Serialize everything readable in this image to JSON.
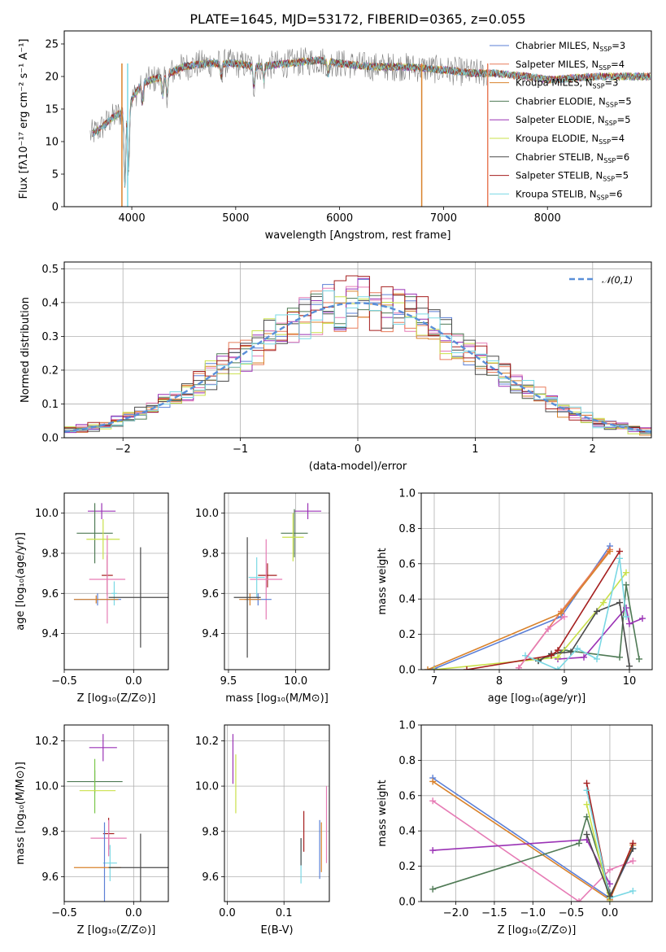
{
  "figure_title": "PLATE=1645, MJD=53172, FIBERID=0365, z=0.055",
  "colors": {
    "Chabrier MILES": "#5b7fd6",
    "Salpeter MILES": "#e87c5a",
    "Kroupa MILES": "#d9822b",
    "Chabrier ELODIE": "#4f7a55",
    "Salpeter ELODIE": "#9a32b5",
    "Kroupa ELODIE": "#c9e04a",
    "Chabrier STELIB": "#4a4a4a",
    "Salpeter STELIB": "#a51f1f",
    "Kroupa STELIB": "#7ad8e4",
    "data": "#808080",
    "normal": "#5a8fd8",
    "pink": "#e67bb5",
    "green2": "#7ac74a"
  },
  "chart_data": [
    {
      "id": "spectrum",
      "type": "line",
      "xlabel": "wavelength [Angstrom, rest frame]",
      "ylabel": "Flux [fλ10⁻¹⁷ erg cm⁻² s⁻¹ A⁻¹]",
      "xlim": [
        3350,
        9000
      ],
      "ylim": [
        0,
        27
      ],
      "xticks": [
        4000,
        5000,
        6000,
        7000,
        8000
      ],
      "yticks": [
        0,
        5,
        10,
        15,
        20,
        25
      ],
      "legend_position": "top-right",
      "legend": [
        {
          "name": "Chabrier MILES, N",
          "sub": "SSP",
          "n": "=3",
          "color": "#5b7fd6"
        },
        {
          "name": "Salpeter MILES, N",
          "sub": "SSP",
          "n": "=4",
          "color": "#e87c5a"
        },
        {
          "name": "Kroupa MILES, N",
          "sub": "SSP",
          "n": "=3",
          "color": "#d9822b"
        },
        {
          "name": "Chabrier ELODIE, N",
          "sub": "SSP",
          "n": "=5",
          "color": "#4f7a55"
        },
        {
          "name": "Salpeter ELODIE, N",
          "sub": "SSP",
          "n": "=5",
          "color": "#9a32b5"
        },
        {
          "name": "Kroupa ELODIE, N",
          "sub": "SSP",
          "n": "=4",
          "color": "#c9e04a"
        },
        {
          "name": "Chabrier STELIB, N",
          "sub": "SSP",
          "n": "=6",
          "color": "#4a4a4a"
        },
        {
          "name": "Salpeter STELIB, N",
          "sub": "SSP",
          "n": "=5",
          "color": "#a51f1f"
        },
        {
          "name": "Kroupa STELIB, N",
          "sub": "SSP",
          "n": "=6",
          "color": "#7ad8e4"
        }
      ],
      "continuum": [
        [
          3600,
          11
        ],
        [
          3700,
          12
        ],
        [
          3800,
          13.5
        ],
        [
          3900,
          14.5
        ],
        [
          4000,
          16.5
        ],
        [
          4100,
          19
        ],
        [
          4200,
          19.5
        ],
        [
          4300,
          20
        ],
        [
          4500,
          21.5
        ],
        [
          4700,
          22
        ],
        [
          5000,
          22
        ],
        [
          5200,
          21.5
        ],
        [
          5500,
          22
        ],
        [
          5800,
          22.5
        ],
        [
          6000,
          22
        ],
        [
          6300,
          21.5
        ],
        [
          6600,
          21.5
        ],
        [
          7000,
          21
        ],
        [
          7300,
          20.5
        ],
        [
          7500,
          20.5
        ],
        [
          7800,
          20
        ],
        [
          8000,
          19.5
        ],
        [
          8500,
          20
        ],
        [
          8900,
          20
        ]
      ]
    },
    {
      "id": "residuals",
      "type": "bar",
      "xlabel": "(data-model)/error",
      "ylabel": "Normed distribution",
      "xlim": [
        -2.5,
        2.5
      ],
      "ylim": [
        0,
        0.52
      ],
      "xticks": [
        -2,
        -1,
        0,
        1,
        2
      ],
      "yticks": [
        0.0,
        0.1,
        0.2,
        0.3,
        0.4,
        0.5
      ],
      "legend_position": "top-right",
      "legend_label": "𝒩(0,1)",
      "bin_width": 0.1,
      "series_centers": [
        -2.45,
        -2.35,
        -2.25,
        -2.15,
        -2.05,
        -1.95,
        -1.85,
        -1.75,
        -1.65,
        -1.55,
        -1.45,
        -1.35,
        -1.25,
        -1.15,
        -1.05,
        -0.95,
        -0.85,
        -0.75,
        -0.65,
        -0.55,
        -0.45,
        -0.35,
        -0.25,
        -0.15,
        -0.05,
        0.05,
        0.15,
        0.25,
        0.35,
        0.45,
        0.55,
        0.65,
        0.75,
        0.85,
        0.95,
        1.05,
        1.15,
        1.25,
        1.35,
        1.45,
        1.55,
        1.65,
        1.75,
        1.85,
        1.95,
        2.05,
        2.15,
        2.25,
        2.35,
        2.45
      ]
    },
    {
      "id": "z-vs-age",
      "type": "scatter",
      "xlabel": "Z [log₁₀(Z/Z⊙)]",
      "ylabel": "age  [log₁₀(age/yr)]",
      "xlim": [
        -0.5,
        0.25
      ],
      "ylim": [
        9.22,
        10.1
      ],
      "xticks": [
        -0.5,
        0.0
      ],
      "yticks": [
        9.4,
        9.6,
        9.8,
        10.0
      ],
      "points": [
        {
          "x": -0.23,
          "y": 10.01,
          "xerr": 0.1,
          "yerr": 0.04,
          "color": "#9a32b5"
        },
        {
          "x": -0.28,
          "y": 9.9,
          "xerr": 0.13,
          "yerr": 0.15,
          "color": "#4f7a55"
        },
        {
          "x": -0.22,
          "y": 9.87,
          "xerr": 0.12,
          "yerr": 0.1,
          "color": "#c9e04a"
        },
        {
          "x": -0.19,
          "y": 9.69,
          "xerr": 0.04,
          "yerr": 0.1,
          "color": "#a51f1f"
        },
        {
          "x": -0.19,
          "y": 9.67,
          "xerr": 0.13,
          "yerr": 0.22,
          "color": "#e67bb5"
        },
        {
          "x": -0.14,
          "y": 9.6,
          "xerr": 0.02,
          "yerr": 0.06,
          "color": "#7ad8e4"
        },
        {
          "x": -0.26,
          "y": 9.57,
          "xerr": 0.17,
          "yerr": 0.03,
          "color": "#5b7fd6"
        },
        {
          "x": -0.27,
          "y": 9.57,
          "xerr": 0.16,
          "yerr": 0.02,
          "color": "#d9822b"
        },
        {
          "x": 0.05,
          "y": 9.58,
          "xerr": 0.23,
          "yerr": 0.25,
          "color": "#4a4a4a"
        }
      ]
    },
    {
      "id": "mass-vs-age",
      "type": "scatter",
      "xlabel": "mass [log₁₀(M/M⊙)]",
      "ylabel": "",
      "xlim": [
        9.47,
        10.25
      ],
      "ylim": [
        9.22,
        10.1
      ],
      "xticks": [
        9.5,
        10.0
      ],
      "yticks": [
        9.4,
        9.6,
        9.8,
        10.0
      ],
      "points": [
        {
          "x": 10.09,
          "y": 10.01,
          "xerr": 0.1,
          "yerr": 0.04,
          "color": "#9a32b5"
        },
        {
          "x": 9.99,
          "y": 9.9,
          "xerr": 0.1,
          "yerr": 0.12,
          "color": "#4f7a55"
        },
        {
          "x": 9.98,
          "y": 9.88,
          "xerr": 0.08,
          "yerr": 0.12,
          "color": "#c9e04a"
        },
        {
          "x": 9.79,
          "y": 9.69,
          "xerr": 0.07,
          "yerr": 0.06,
          "color": "#a51f1f"
        },
        {
          "x": 9.78,
          "y": 9.67,
          "xerr": 0.12,
          "yerr": 0.2,
          "color": "#e67bb5"
        },
        {
          "x": 9.71,
          "y": 9.68,
          "xerr": 0.06,
          "yerr": 0.1,
          "color": "#7ad8e4"
        },
        {
          "x": 9.72,
          "y": 9.57,
          "xerr": 0.1,
          "yerr": 0.03,
          "color": "#5b7fd6"
        },
        {
          "x": 9.66,
          "y": 9.57,
          "xerr": 0.08,
          "yerr": 0.03,
          "color": "#d9822b"
        },
        {
          "x": 9.64,
          "y": 9.58,
          "xerr": 0.1,
          "yerr": 0.3,
          "color": "#4a4a4a"
        }
      ]
    },
    {
      "id": "age-vs-weight",
      "type": "line",
      "xlabel": "age  [log₁₀(age/yr)]",
      "ylabel": "mass weight",
      "xlim": [
        6.8,
        10.35
      ],
      "ylim": [
        0,
        1
      ],
      "xticks": [
        7,
        8,
        9,
        10
      ],
      "yticks": [
        0.0,
        0.2,
        0.4,
        0.6,
        0.8,
        1.0
      ],
      "series": [
        {
          "name": "Chabrier MILES",
          "color": "#5b7fd6",
          "points": [
            [
              7.0,
              0.005
            ],
            [
              8.95,
              0.3
            ],
            [
              9.7,
              0.7
            ]
          ]
        },
        {
          "name": "Salpeter MILES",
          "color": "#e87c5a",
          "points": [
            [
              8.3,
              0.01
            ],
            [
              8.95,
              0.33
            ],
            [
              9.7,
              0.68
            ]
          ]
        },
        {
          "name": "Kroupa MILES",
          "color": "#d9822b",
          "points": [
            [
              6.9,
              0.0
            ],
            [
              8.95,
              0.32
            ],
            [
              9.7,
              0.67
            ]
          ]
        },
        {
          "name": "Chabrier ELODIE",
          "color": "#4f7a55",
          "points": [
            [
              8.6,
              0.05
            ],
            [
              9.0,
              0.11
            ],
            [
              9.85,
              0.07
            ],
            [
              9.95,
              0.48
            ],
            [
              10.15,
              0.06
            ]
          ]
        },
        {
          "name": "Salpeter ELODIE",
          "color": "#9a32b5",
          "points": [
            [
              8.9,
              0.06
            ],
            [
              9.3,
              0.07
            ],
            [
              9.95,
              0.35
            ],
            [
              10.0,
              0.26
            ],
            [
              10.2,
              0.29
            ]
          ]
        },
        {
          "name": "Kroupa ELODIE",
          "color": "#c9e04a",
          "points": [
            [
              7.0,
              0.0
            ],
            [
              8.9,
              0.07
            ],
            [
              9.6,
              0.38
            ],
            [
              9.95,
              0.55
            ]
          ]
        },
        {
          "name": "Chabrier STELIB",
          "color": "#4a4a4a",
          "points": [
            [
              8.6,
              0.05
            ],
            [
              8.8,
              0.09
            ],
            [
              9.1,
              0.1
            ],
            [
              9.5,
              0.33
            ],
            [
              9.85,
              0.38
            ],
            [
              10.0,
              0.02
            ]
          ]
        },
        {
          "name": "Salpeter STELIB",
          "color": "#a51f1f",
          "points": [
            [
              7.5,
              0.0
            ],
            [
              8.8,
              0.08
            ],
            [
              8.9,
              0.11
            ],
            [
              9.85,
              0.67
            ]
          ]
        },
        {
          "name": "Kroupa STELIB",
          "color": "#7ad8e4",
          "points": [
            [
              8.4,
              0.08
            ],
            [
              8.9,
              0.0
            ],
            [
              9.2,
              0.12
            ],
            [
              9.5,
              0.06
            ],
            [
              9.85,
              0.63
            ],
            [
              9.95,
              0.3
            ]
          ]
        },
        {
          "name": "pink",
          "color": "#e67bb5",
          "points": [
            [
              8.3,
              0.01
            ],
            [
              8.75,
              0.23
            ],
            [
              9.0,
              0.3
            ]
          ]
        }
      ]
    },
    {
      "id": "z-vs-mass",
      "type": "scatter",
      "xlabel": "Z [log₁₀(Z/Z⊙)]",
      "ylabel": "mass [log₁₀(M/M⊙)]",
      "xlim": [
        -0.5,
        0.25
      ],
      "ylim": [
        9.49,
        10.27
      ],
      "xticks": [
        -0.5,
        0.0
      ],
      "yticks": [
        9.6,
        9.8,
        10.0,
        10.2
      ],
      "points": [
        {
          "x": -0.22,
          "y": 10.17,
          "xerr": 0.1,
          "yerr": 0.06,
          "color": "#9a32b5"
        },
        {
          "x": -0.28,
          "y": 10.02,
          "xerr": 0.2,
          "yerr": 0.05,
          "color": "#4f7a55"
        },
        {
          "x": -0.28,
          "y": 10.0,
          "xerr": 0.0,
          "yerr": 0.12,
          "color": "#7ac74a"
        },
        {
          "x": -0.26,
          "y": 9.98,
          "xerr": 0.13,
          "yerr": 0.0,
          "color": "#c9e04a"
        },
        {
          "x": -0.18,
          "y": 9.79,
          "xerr": 0.04,
          "yerr": 0.07,
          "color": "#a51f1f"
        },
        {
          "x": -0.18,
          "y": 9.77,
          "xerr": 0.13,
          "yerr": 0.08,
          "color": "#e67bb5"
        },
        {
          "x": -0.17,
          "y": 9.66,
          "xerr": 0.05,
          "yerr": 0.08,
          "color": "#7ad8e4"
        },
        {
          "x": -0.21,
          "y": 9.64,
          "xerr": 0.0,
          "yerr": 0.2,
          "color": "#5b7fd6"
        },
        {
          "x": -0.26,
          "y": 9.64,
          "xerr": 0.17,
          "yerr": 0.0,
          "color": "#d9822b"
        },
        {
          "x": 0.05,
          "y": 9.64,
          "xerr": 0.23,
          "yerr": 0.15,
          "color": "#4a4a4a"
        }
      ]
    },
    {
      "id": "ebv-vs-mass",
      "type": "scatter",
      "xlabel": "E(B-V)",
      "ylabel": "",
      "xlim": [
        -0.005,
        0.18
      ],
      "ylim": [
        9.49,
        10.27
      ],
      "xticks": [
        0.0,
        0.1
      ],
      "yticks": [
        9.6,
        9.8,
        10.0,
        10.2
      ],
      "points": [
        {
          "x": 0.01,
          "y": 10.12,
          "xerr": 0.0,
          "yerr": 0.11,
          "color": "#9a32b5"
        },
        {
          "x": 0.015,
          "y": 10.01,
          "xerr": 0.0,
          "yerr": 0.13,
          "color": "#c9e04a"
        },
        {
          "x": 0.135,
          "y": 9.8,
          "xerr": 0.0,
          "yerr": 0.09,
          "color": "#a51f1f"
        },
        {
          "x": 0.13,
          "y": 9.67,
          "xerr": 0.0,
          "yerr": 0.1,
          "color": "#7ad8e4"
        },
        {
          "x": 0.13,
          "y": 9.71,
          "xerr": 0.0,
          "yerr": 0.06,
          "color": "#4a4a4a"
        },
        {
          "x": 0.163,
          "y": 9.72,
          "xerr": 0.0,
          "yerr": 0.13,
          "color": "#5b7fd6"
        },
        {
          "x": 0.166,
          "y": 9.73,
          "xerr": 0.0,
          "yerr": 0.11,
          "color": "#d9822b"
        },
        {
          "x": 0.175,
          "y": 9.83,
          "xerr": 0.0,
          "yerr": 0.17,
          "color": "#e67bb5"
        }
      ]
    },
    {
      "id": "z-vs-weight",
      "type": "line",
      "xlabel": "Z [log₁₀(Z/Z⊙)]",
      "ylabel": "mass weight",
      "xlim": [
        -2.45,
        0.55
      ],
      "ylim": [
        0,
        1
      ],
      "xticks": [
        -2.0,
        -1.5,
        -1.0,
        -0.5,
        0.0
      ],
      "yticks": [
        0.0,
        0.2,
        0.4,
        0.6,
        0.8,
        1.0
      ],
      "series": [
        {
          "name": "Chabrier MILES",
          "color": "#5b7fd6",
          "points": [
            [
              -2.3,
              0.7
            ],
            [
              0.0,
              0.02
            ],
            [
              0.3,
              0.3
            ]
          ]
        },
        {
          "name": "Kroupa MILES",
          "color": "#d9822b",
          "points": [
            [
              -2.3,
              0.68
            ],
            [
              0.0,
              0.01
            ],
            [
              0.3,
              0.32
            ]
          ]
        },
        {
          "name": "pink",
          "color": "#e67bb5",
          "points": [
            [
              -2.3,
              0.57
            ],
            [
              -0.4,
              0.0
            ],
            [
              0.0,
              0.18
            ],
            [
              0.3,
              0.23
            ]
          ]
        },
        {
          "name": "Salpeter ELODIE",
          "color": "#9a32b5",
          "points": [
            [
              -2.3,
              0.29
            ],
            [
              -0.3,
              0.35
            ],
            [
              0.0,
              0.1
            ]
          ]
        },
        {
          "name": "Chabrier ELODIE",
          "color": "#4f7a55",
          "points": [
            [
              -2.3,
              0.07
            ],
            [
              -0.4,
              0.33
            ],
            [
              -0.3,
              0.48
            ],
            [
              0.0,
              0.05
            ]
          ]
        },
        {
          "name": "Salpeter STELIB",
          "color": "#a51f1f",
          "points": [
            [
              -0.3,
              0.67
            ],
            [
              0.0,
              0.02
            ],
            [
              0.3,
              0.33
            ]
          ]
        },
        {
          "name": "Kroupa STELIB",
          "color": "#7ad8e4",
          "points": [
            [
              -0.3,
              0.63
            ],
            [
              0.0,
              0.02
            ],
            [
              0.3,
              0.06
            ]
          ]
        },
        {
          "name": "Kroupa ELODIE",
          "color": "#c9e04a",
          "points": [
            [
              -0.3,
              0.55
            ],
            [
              0.0,
              0.0
            ]
          ]
        },
        {
          "name": "Chabrier STELIB",
          "color": "#4a4a4a",
          "points": [
            [
              -0.3,
              0.38
            ],
            [
              0.0,
              0.03
            ],
            [
              0.3,
              0.3
            ]
          ]
        }
      ]
    }
  ]
}
